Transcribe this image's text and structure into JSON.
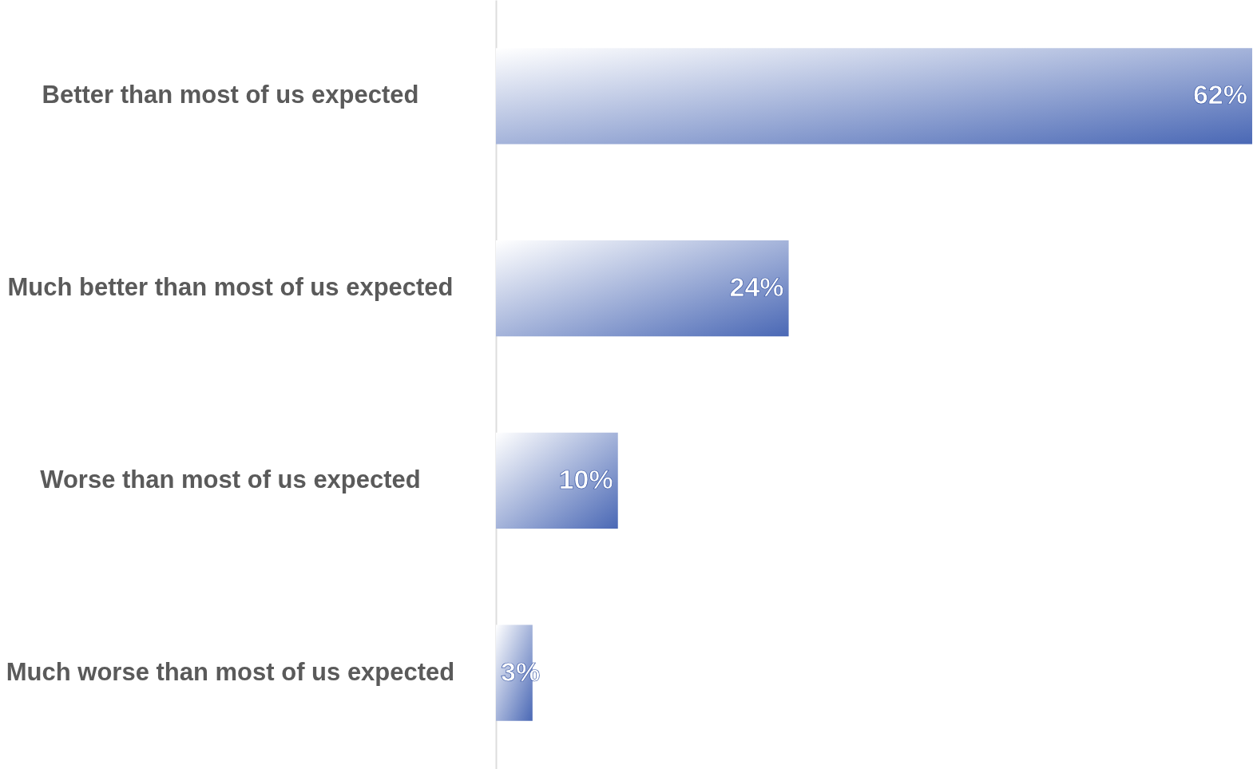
{
  "chart_data": {
    "type": "bar",
    "orientation": "horizontal",
    "categories": [
      "Better than most of us expected",
      "Much better than most of us expected",
      "Worse than most of us expected",
      "Much worse than most of us expected"
    ],
    "values": [
      62,
      24,
      10,
      3
    ],
    "value_labels": [
      "62%",
      "24%",
      "10%",
      "3%"
    ],
    "color": "#4a68b5",
    "grid": false,
    "tick_labels": "y"
  }
}
